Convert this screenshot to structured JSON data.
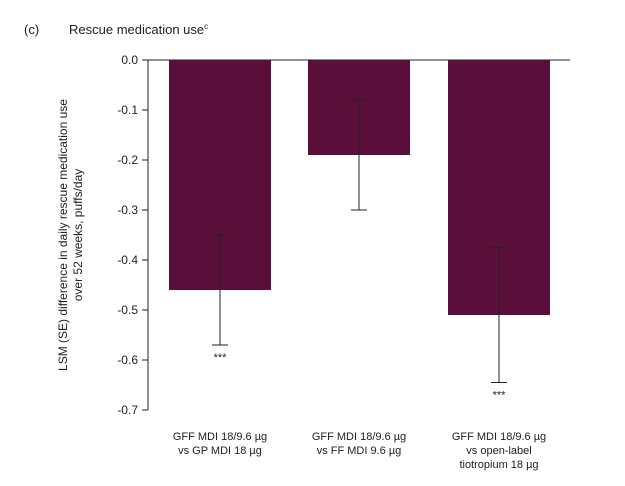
{
  "panel_label": "(c)",
  "title_main": "Rescue medication use",
  "title_sup": "c",
  "chart_data": {
    "type": "bar",
    "title": "Rescue medication use",
    "ylabel_lines": [
      "LSM (SE) difference in daily rescue medication use",
      "over 52 weeks, puffs/day"
    ],
    "xlabel": "",
    "ylim": [
      -0.7,
      0.0
    ],
    "yticks": [
      0.0,
      -0.1,
      -0.2,
      -0.3,
      -0.4,
      -0.5,
      -0.6,
      -0.7
    ],
    "ytick_labels": [
      "0.0",
      "-0.1",
      "-0.2",
      "-0.3",
      "-0.4",
      "-0.5",
      "-0.6",
      "-0.7"
    ],
    "bar_color": "#5a0f3a",
    "grid": false,
    "categories": [
      [
        "GFF MDI 18/9.6 µg",
        "vs GP MDI 18 µg"
      ],
      [
        "GFF MDI 18/9.6 µg",
        "vs FF MDI 9.6 µg"
      ],
      [
        "GFF MDI 18/9.6 µg",
        "vs open-label",
        "tiotropium 18 µg"
      ]
    ],
    "values": [
      -0.46,
      -0.19,
      -0.51
    ],
    "error_low": [
      -0.57,
      -0.3,
      -0.645
    ],
    "error_high": [
      -0.35,
      -0.08,
      -0.375
    ],
    "significance": [
      "***",
      "",
      "***"
    ]
  }
}
